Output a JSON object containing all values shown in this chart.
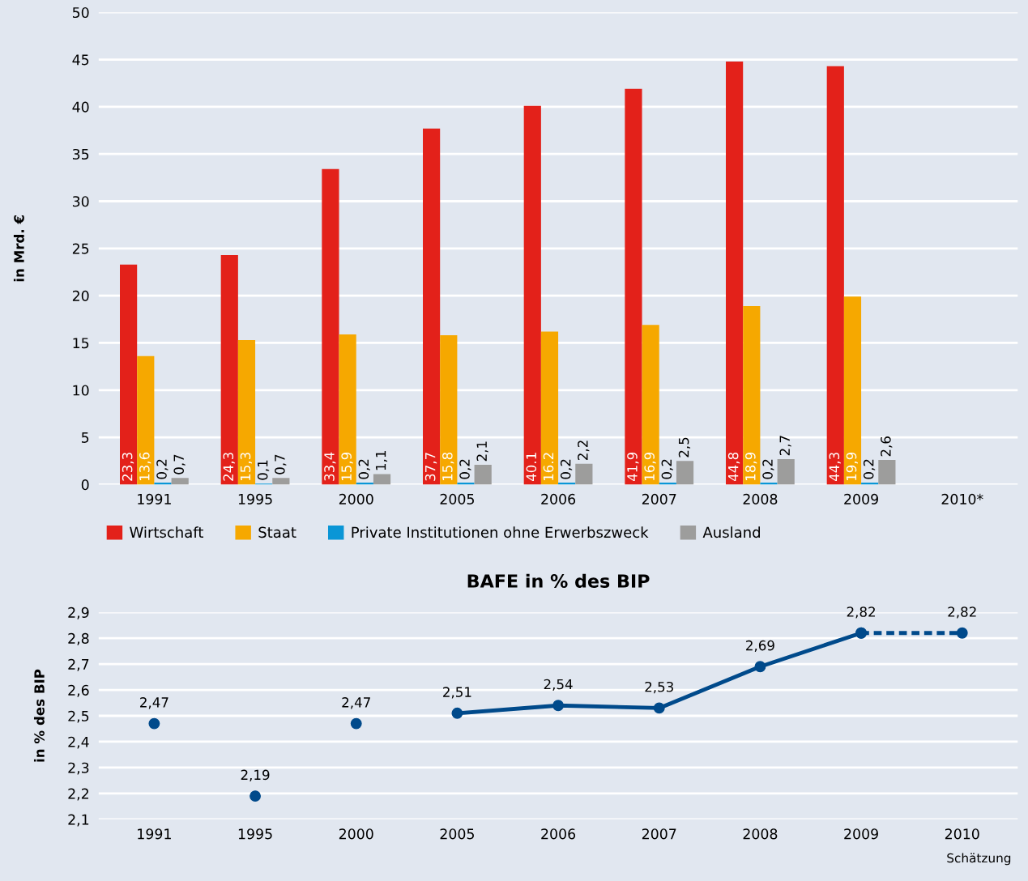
{
  "chart_data": [
    {
      "type": "bar",
      "ylabel": "in Mrd. €",
      "categories": [
        "1991",
        "1995",
        "2000",
        "2005",
        "2006",
        "2007",
        "2008",
        "2009",
        "2010*"
      ],
      "ylim": [
        0,
        50
      ],
      "yticks": [
        0,
        5,
        10,
        15,
        20,
        25,
        30,
        35,
        40,
        45,
        50
      ],
      "grid": "y",
      "legend": "bottom",
      "series": [
        {
          "name": "Wirtschaft",
          "color": "#e3211a",
          "values": [
            23.3,
            24.3,
            33.4,
            37.7,
            40.1,
            41.9,
            44.8,
            44.3,
            null
          ],
          "value_labels": [
            "23,3",
            "24,3",
            "33,4",
            "37,7",
            "40.1",
            "41,9",
            "44,8",
            "44,3",
            null
          ]
        },
        {
          "name": "Staat",
          "color": "#f6a800",
          "values": [
            13.6,
            15.3,
            15.9,
            15.8,
            16.2,
            16.9,
            18.9,
            19.9,
            null
          ],
          "value_labels": [
            "13,6",
            "15,3",
            "15,9",
            "15,8",
            "16.2",
            "16,9",
            "18,9",
            "19,9",
            null
          ]
        },
        {
          "name": "Private Institutionen ohne Erwerbszweck",
          "color": "#0a96d6",
          "values": [
            0.2,
            0.1,
            0.2,
            0.2,
            0.2,
            0.2,
            0.2,
            0.2,
            null
          ],
          "value_labels": [
            "0,2",
            "0,1",
            "0,2",
            "0,2",
            "0,2",
            "0,2",
            "0,2",
            "0,2",
            null
          ]
        },
        {
          "name": "Ausland",
          "color": "#9d9d9c",
          "values": [
            0.7,
            0.7,
            1.1,
            2.1,
            2.2,
            2.5,
            2.7,
            2.6,
            null
          ],
          "value_labels": [
            "0,7",
            "0,7",
            "1,1",
            "2,1",
            "2,2",
            "2,5",
            "2,7",
            "2,6",
            null
          ]
        }
      ]
    },
    {
      "type": "line",
      "title": "BAFE in % des BIP",
      "ylabel": "in % des BIP",
      "categories": [
        "1991",
        "1995",
        "2000",
        "2005",
        "2006",
        "2007",
        "2008",
        "2009",
        "2010"
      ],
      "annotations": [
        "Schätzung"
      ],
      "ylim": [
        2.1,
        2.9
      ],
      "yticks": [
        {
          "value": 2.1,
          "label": "2,1"
        },
        {
          "value": 2.2,
          "label": "2,2"
        },
        {
          "value": 2.3,
          "label": "2,3"
        },
        {
          "value": 2.4,
          "label": "2,4"
        },
        {
          "value": 2.5,
          "label": "2,5"
        },
        {
          "value": 2.6,
          "label": "2,6"
        },
        {
          "value": 2.7,
          "label": "2,7"
        },
        {
          "value": 2.8,
          "label": "2,8"
        },
        {
          "value": 2.9,
          "label": "2,9"
        }
      ],
      "grid": "y",
      "marker": "circle",
      "series": [
        {
          "type": "scatter",
          "color": "#004a8b",
          "values": [
            2.47,
            2.19,
            2.47,
            null,
            null,
            null,
            null,
            null,
            null
          ],
          "value_labels": [
            "2,47",
            "2,19",
            "2,47",
            null,
            null,
            null,
            null,
            null,
            null
          ]
        },
        {
          "type": "line",
          "color": "#004a8b",
          "line_style": "solid",
          "values": [
            null,
            null,
            null,
            2.51,
            2.54,
            2.53,
            2.69,
            2.82,
            null
          ],
          "value_labels": [
            null,
            null,
            null,
            "2,51",
            "2,54",
            "2,53",
            "2,69",
            "2,82",
            null
          ]
        },
        {
          "type": "line",
          "color": "#004a8b",
          "line_style": "dashed",
          "values": [
            null,
            null,
            null,
            null,
            null,
            null,
            null,
            2.82,
            2.82
          ],
          "value_labels": [
            null,
            null,
            null,
            null,
            null,
            null,
            null,
            null,
            "2,82"
          ]
        }
      ]
    }
  ]
}
